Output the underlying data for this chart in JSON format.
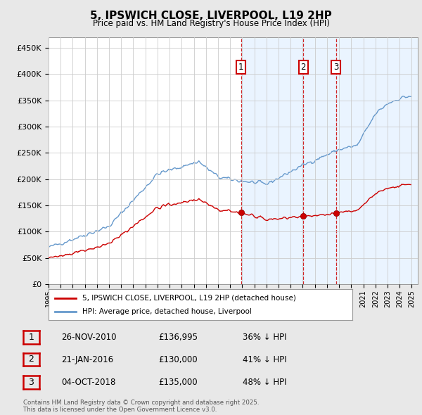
{
  "title": "5, IPSWICH CLOSE, LIVERPOOL, L19 2HP",
  "subtitle": "Price paid vs. HM Land Registry's House Price Index (HPI)",
  "ylim": [
    0,
    470000
  ],
  "yticks": [
    0,
    50000,
    100000,
    150000,
    200000,
    250000,
    300000,
    350000,
    400000,
    450000
  ],
  "ytick_labels": [
    "£0",
    "£50K",
    "£100K",
    "£150K",
    "£200K",
    "£250K",
    "£300K",
    "£350K",
    "£400K",
    "£450K"
  ],
  "background_color": "#e8e8e8",
  "plot_bg_color": "#ffffff",
  "sale_color": "#cc0000",
  "hpi_color": "#6699cc",
  "shade_color": "#ddeeff",
  "vline_color": "#cc0000",
  "grid_color": "#cccccc",
  "purchase_dates": [
    2010.9,
    2016.05,
    2018.75
  ],
  "purchase_prices": [
    136995,
    130000,
    135000
  ],
  "purchase_labels": [
    "1",
    "2",
    "3"
  ],
  "purchase_info": [
    {
      "num": "1",
      "date": "26-NOV-2010",
      "price": "£136,995",
      "hpi_note": "36% ↓ HPI"
    },
    {
      "num": "2",
      "date": "21-JAN-2016",
      "price": "£130,000",
      "hpi_note": "41% ↓ HPI"
    },
    {
      "num": "3",
      "date": "04-OCT-2018",
      "price": "£135,000",
      "hpi_note": "48% ↓ HPI"
    }
  ],
  "legend_entries": [
    "5, IPSWICH CLOSE, LIVERPOOL, L19 2HP (detached house)",
    "HPI: Average price, detached house, Liverpool"
  ],
  "footer": "Contains HM Land Registry data © Crown copyright and database right 2025.\nThis data is licensed under the Open Government Licence v3.0.",
  "x_start": 1995.0,
  "x_end": 2025.5,
  "xtick_years": [
    1995,
    1996,
    1997,
    1998,
    1999,
    2000,
    2001,
    2002,
    2003,
    2004,
    2005,
    2006,
    2007,
    2008,
    2009,
    2010,
    2011,
    2012,
    2013,
    2014,
    2015,
    2016,
    2017,
    2018,
    2019,
    2020,
    2021,
    2022,
    2023,
    2024,
    2025
  ]
}
